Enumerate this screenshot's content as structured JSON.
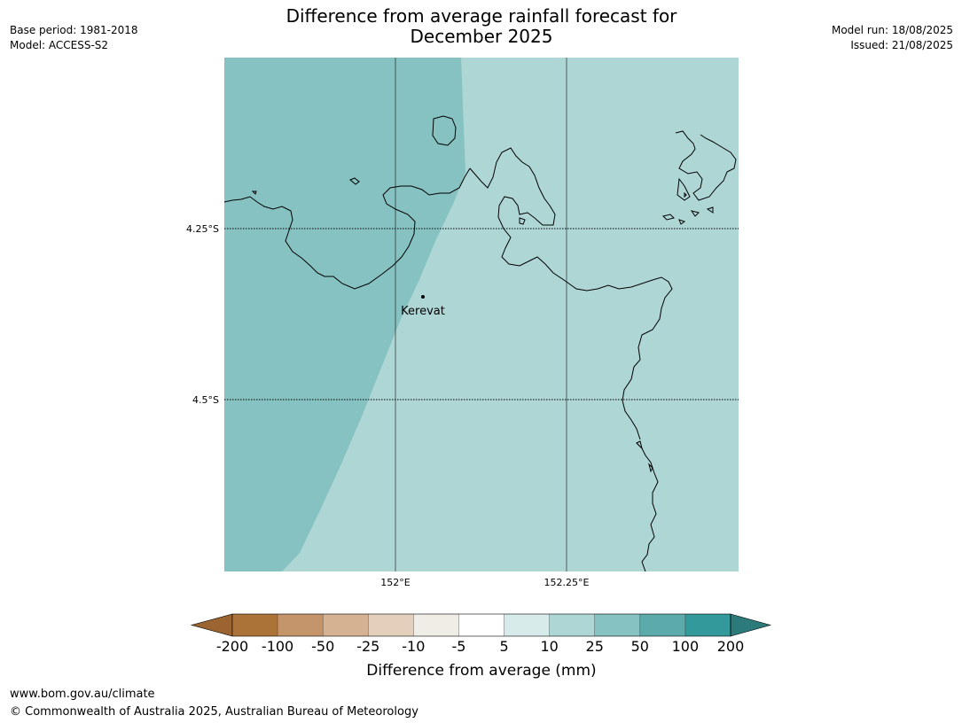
{
  "meta_left": {
    "base_period": "Base period: 1981-2018",
    "model": "Model: ACCESS-S2"
  },
  "meta_right": {
    "model_run": "Model run: 18/08/2025",
    "issued": "Issued: 21/08/2025"
  },
  "title_line1": "Difference from average rainfall forecast for",
  "title_line2": "December 2025",
  "map": {
    "lat_labels": [
      "4.25°S",
      "4.5°S"
    ],
    "lon_labels": [
      "152°E",
      "152.25°E"
    ],
    "place": "Kerevat",
    "colors": {
      "band_25_50": "#86c2c1",
      "band_10_25": "#aed6d5",
      "coastline": "#000000",
      "graticule": "#000000"
    }
  },
  "colorbar": {
    "title": "Difference from average (mm)",
    "ticks": [
      "-200",
      "-100",
      "-50",
      "-25",
      "-10",
      "-5",
      "5",
      "10",
      "25",
      "50",
      "100",
      "200"
    ],
    "colors": [
      "#9b6430",
      "#ac7339",
      "#c4956a",
      "#d4b292",
      "#e4cfbd",
      "#f0ece6",
      "#ffffff",
      "#d6ebea",
      "#aed6d5",
      "#86c2c1",
      "#5cabaa",
      "#34999a",
      "#2d7a7b"
    ]
  },
  "footer": {
    "url": "www.bom.gov.au/climate",
    "copyright": "© Commonwealth of Australia 2025, Australian Bureau of Meteorology"
  }
}
